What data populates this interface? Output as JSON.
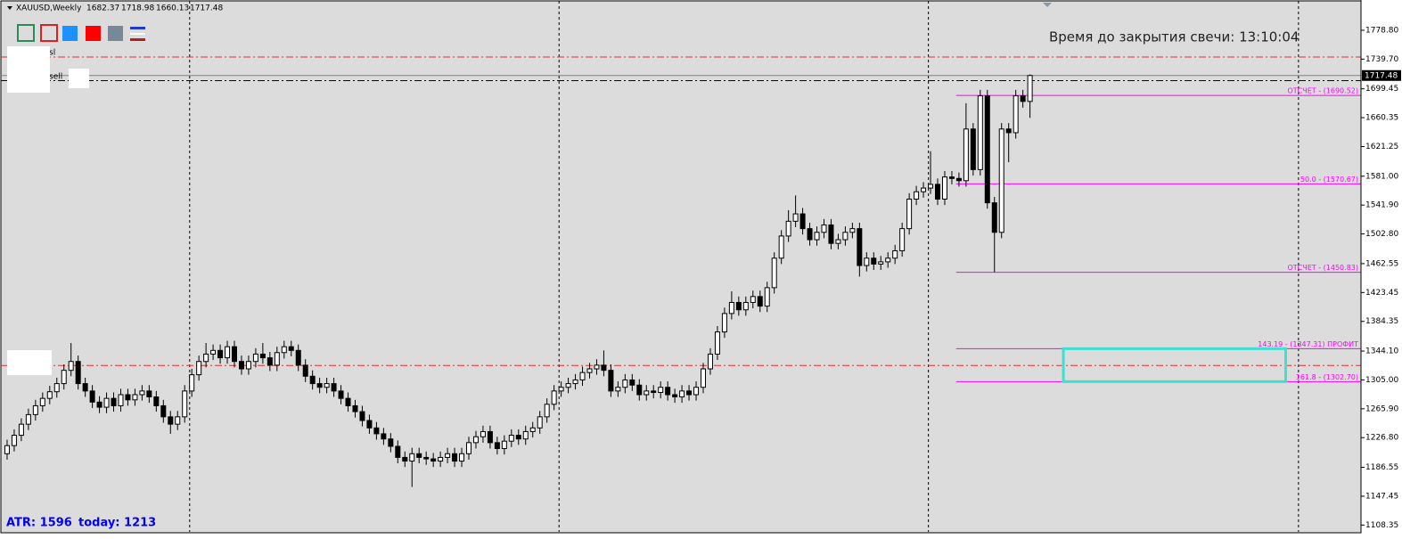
{
  "chart_data": {
    "type": "candlestick",
    "title": "XAUUSD,Weekly",
    "timer_text": "Время до закрытия свечи: 13:10:04",
    "atr_label": "ATR: 1596",
    "today_label": "today: 1213",
    "object_labels": [
      "sl",
      "sell"
    ],
    "up_color": "#ffffff",
    "down_color": "#000000",
    "wick_color": "#000000",
    "xlim": [
      -1,
      190.6
    ],
    "ylim": [
      1099.1,
      1819.8
    ],
    "yticks": [
      {
        "value": 1778.8,
        "label": "1778.80"
      },
      {
        "value": 1739.7,
        "label": "1739.70"
      },
      {
        "value": 1699.45,
        "label": "1699.45"
      },
      {
        "value": 1660.35,
        "label": "1660.35"
      },
      {
        "value": 1621.25,
        "label": "1621.25"
      },
      {
        "value": 1581,
        "label": "1581.00"
      },
      {
        "value": 1541.9,
        "label": "1541.90"
      },
      {
        "value": 1502.8,
        "label": "1502.80"
      },
      {
        "value": 1462.55,
        "label": "1462.55"
      },
      {
        "value": 1423.45,
        "label": "1423.45"
      },
      {
        "value": 1384.35,
        "label": "1384.35"
      },
      {
        "value": 1344.1,
        "label": "1344.10"
      },
      {
        "value": 1305,
        "label": "1305.00"
      },
      {
        "value": 1265.9,
        "label": "1265.90"
      },
      {
        "value": 1226.8,
        "label": "1226.80"
      },
      {
        "value": 1186.55,
        "label": "1186.55"
      },
      {
        "value": 1147.45,
        "label": "1147.45"
      },
      {
        "value": 1108.35,
        "label": "1108.35"
      }
    ],
    "period_separators": [
      25.7,
      77.7,
      129.7,
      181.8
    ],
    "levels": [
      {
        "value": 1742.5,
        "color": "#e0302f"
      },
      {
        "value": 1710.5,
        "color": "#000000"
      },
      {
        "value": 1324.6,
        "color": "#e0302f"
      }
    ],
    "fib_color": "#ff00ff",
    "fib_from": 133.6,
    "fib_levels": [
      {
        "value": 1690.52,
        "label": "ОТСЧЕТ - (1690.52)"
      },
      {
        "value": 1570.67,
        "label": "50.0 - (1570.67)"
      },
      {
        "value": 1450.83,
        "label": "ОТСЧЕТ - (1450.83)"
      },
      {
        "value": 1347.31,
        "label": "143.19 - (1347.31) ПРОФИТ"
      },
      {
        "value": 1302.7,
        "label": "161.8 - (1302.70)"
      }
    ],
    "zone": {
      "x": [
        148.7,
        180.0
      ],
      "color": "#40e0d0"
    },
    "open": [
      1205,
      1216,
      1230,
      1245,
      1258,
      1270,
      1280,
      1289,
      1300,
      1318,
      1330,
      1300,
      1290,
      1275,
      1268,
      1280,
      1270,
      1285,
      1278,
      1285,
      1290,
      1282,
      1270,
      1255,
      1245,
      1255,
      1290,
      1312,
      1330,
      1340,
      1345,
      1335,
      1350,
      1330,
      1320,
      1330,
      1340,
      1335,
      1325,
      1342,
      1350,
      1345,
      1325,
      1310,
      1300,
      1295,
      1300,
      1290,
      1280,
      1270,
      1262,
      1250,
      1240,
      1232,
      1225,
      1215,
      1200,
      1195,
      1205,
      1200,
      1198,
      1195,
      1200,
      1205,
      1195,
      1205,
      1220,
      1228,
      1235,
      1220,
      1212,
      1222,
      1230,
      1225,
      1235,
      1240,
      1255,
      1272,
      1290,
      1295,
      1300,
      1305,
      1315,
      1320,
      1325,
      1318,
      1290,
      1295,
      1305,
      1298,
      1285,
      1290,
      1288,
      1295,
      1285,
      1282,
      1290,
      1285,
      1295,
      1320,
      1340,
      1370,
      1395,
      1410,
      1400,
      1410,
      1418,
      1405,
      1430,
      1470,
      1500,
      1520,
      1530,
      1510,
      1495,
      1505,
      1515,
      1490,
      1495,
      1505,
      1510,
      1460,
      1470,
      1462,
      1465,
      1470,
      1480,
      1510,
      1550,
      1560,
      1565,
      1570,
      1550,
      1580,
      1578,
      1575,
      1645,
      1590,
      1690,
      1545,
      1505,
      1645,
      1640,
      1690,
      1682.37
    ],
    "high": [
      1224,
      1238,
      1253,
      1266,
      1278,
      1288,
      1297,
      1308,
      1326,
      1355,
      1338,
      1308,
      1298,
      1283,
      1288,
      1288,
      1293,
      1293,
      1293,
      1298,
      1298,
      1290,
      1278,
      1263,
      1263,
      1298,
      1320,
      1338,
      1355,
      1353,
      1353,
      1358,
      1358,
      1338,
      1338,
      1348,
      1355,
      1343,
      1350,
      1358,
      1358,
      1353,
      1333,
      1318,
      1308,
      1308,
      1308,
      1298,
      1288,
      1278,
      1270,
      1258,
      1248,
      1240,
      1233,
      1223,
      1208,
      1213,
      1213,
      1208,
      1206,
      1208,
      1213,
      1213,
      1213,
      1228,
      1236,
      1243,
      1243,
      1228,
      1230,
      1238,
      1238,
      1243,
      1248,
      1263,
      1280,
      1298,
      1303,
      1308,
      1313,
      1323,
      1328,
      1333,
      1345,
      1326,
      1303,
      1313,
      1313,
      1306,
      1298,
      1298,
      1303,
      1303,
      1293,
      1298,
      1298,
      1303,
      1328,
      1348,
      1378,
      1403,
      1425,
      1418,
      1418,
      1426,
      1426,
      1438,
      1478,
      1508,
      1535,
      1555,
      1538,
      1518,
      1513,
      1523,
      1523,
      1503,
      1513,
      1518,
      1518,
      1478,
      1478,
      1473,
      1478,
      1488,
      1518,
      1558,
      1568,
      1573,
      1615,
      1578,
      1588,
      1588,
      1586,
      1680,
      1653,
      1698,
      1698,
      1553,
      1653,
      1653,
      1698,
      1698,
      1718.98
    ],
    "low": [
      1197,
      1208,
      1222,
      1237,
      1250,
      1262,
      1272,
      1281,
      1292,
      1310,
      1292,
      1282,
      1267,
      1260,
      1260,
      1262,
      1262,
      1270,
      1270,
      1277,
      1274,
      1262,
      1247,
      1232,
      1237,
      1247,
      1282,
      1304,
      1322,
      1332,
      1327,
      1327,
      1322,
      1312,
      1312,
      1322,
      1327,
      1317,
      1317,
      1334,
      1337,
      1317,
      1302,
      1292,
      1287,
      1287,
      1282,
      1272,
      1262,
      1254,
      1242,
      1232,
      1224,
      1217,
      1207,
      1192,
      1187,
      1160,
      1192,
      1190,
      1187,
      1187,
      1192,
      1187,
      1187,
      1197,
      1212,
      1220,
      1212,
      1204,
      1204,
      1214,
      1217,
      1217,
      1227,
      1232,
      1247,
      1264,
      1282,
      1287,
      1292,
      1297,
      1307,
      1312,
      1310,
      1282,
      1282,
      1287,
      1290,
      1277,
      1277,
      1280,
      1280,
      1277,
      1274,
      1274,
      1277,
      1277,
      1287,
      1312,
      1332,
      1362,
      1387,
      1392,
      1392,
      1402,
      1397,
      1397,
      1422,
      1462,
      1492,
      1512,
      1502,
      1487,
      1487,
      1497,
      1482,
      1482,
      1487,
      1497,
      1445,
      1452,
      1454,
      1454,
      1457,
      1462,
      1472,
      1502,
      1542,
      1552,
      1557,
      1542,
      1542,
      1570,
      1567,
      1567,
      1582,
      1582,
      1537,
      1451,
      1497,
      1600,
      1632,
      1674,
      1660.13
    ],
    "close": [
      1216,
      1230,
      1245,
      1258,
      1270,
      1280,
      1289,
      1300,
      1318,
      1330,
      1300,
      1290,
      1275,
      1268,
      1280,
      1270,
      1285,
      1278,
      1285,
      1290,
      1282,
      1270,
      1255,
      1245,
      1255,
      1290,
      1312,
      1330,
      1340,
      1345,
      1335,
      1350,
      1330,
      1320,
      1330,
      1340,
      1335,
      1325,
      1342,
      1350,
      1345,
      1325,
      1310,
      1300,
      1295,
      1300,
      1290,
      1280,
      1270,
      1262,
      1250,
      1240,
      1232,
      1225,
      1215,
      1200,
      1195,
      1205,
      1200,
      1198,
      1195,
      1200,
      1205,
      1195,
      1205,
      1220,
      1228,
      1235,
      1220,
      1212,
      1222,
      1230,
      1225,
      1235,
      1240,
      1255,
      1272,
      1290,
      1295,
      1300,
      1305,
      1315,
      1320,
      1325,
      1318,
      1290,
      1295,
      1305,
      1298,
      1285,
      1290,
      1288,
      1295,
      1285,
      1282,
      1290,
      1285,
      1295,
      1320,
      1340,
      1370,
      1395,
      1410,
      1400,
      1410,
      1418,
      1405,
      1430,
      1470,
      1500,
      1520,
      1530,
      1510,
      1495,
      1505,
      1515,
      1490,
      1495,
      1505,
      1510,
      1460,
      1470,
      1462,
      1465,
      1470,
      1480,
      1510,
      1550,
      1560,
      1565,
      1570,
      1550,
      1580,
      1578,
      1575,
      1645,
      1590,
      1690,
      1545,
      1505,
      1645,
      1640,
      1690,
      1682.37,
      1717.48
    ]
  }
}
